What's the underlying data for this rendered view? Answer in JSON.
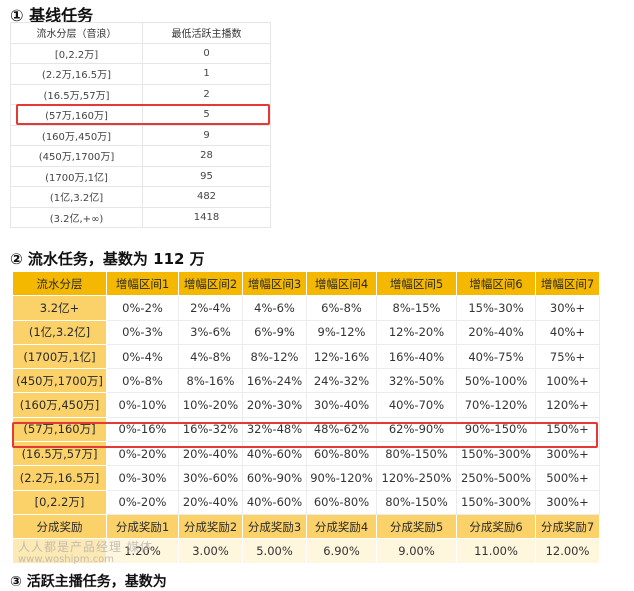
{
  "section1": {
    "heading": "①  基线任务",
    "columns": [
      "流水分层（音浪）",
      "最低活跃主播数"
    ],
    "rows": [
      [
        "[0,2.2万]",
        "0"
      ],
      [
        "(2.2万,16.5万]",
        "1"
      ],
      [
        "(16.5万,57万]",
        "2"
      ],
      [
        "(57万,160万]",
        "5"
      ],
      [
        "(160万,450万]",
        "9"
      ],
      [
        "(450万,1700万]",
        "28"
      ],
      [
        "(1700万,1亿]",
        "95"
      ],
      [
        "(1亿,3.2亿]",
        "482"
      ],
      [
        "(3.2亿,+∞)",
        "1418"
      ]
    ],
    "highlighted_row": 3
  },
  "section2": {
    "heading": "②  流水任务，基数为 112 万",
    "columns": [
      "流水分层",
      "增幅区间1",
      "增幅区间2",
      "增幅区间3",
      "增幅区间4",
      "增幅区间5",
      "增幅区间6",
      "增幅区间7"
    ],
    "rows": [
      [
        "3.2亿+",
        "0%-2%",
        "2%-4%",
        "4%-6%",
        "6%-8%",
        "8%-15%",
        "15%-30%",
        "30%+"
      ],
      [
        "(1亿,3.2亿]",
        "0%-3%",
        "3%-6%",
        "6%-9%",
        "9%-12%",
        "12%-20%",
        "20%-40%",
        "40%+"
      ],
      [
        "(1700万,1亿]",
        "0%-4%",
        "4%-8%",
        "8%-12%",
        "12%-16%",
        "16%-40%",
        "40%-75%",
        "75%+"
      ],
      [
        "(450万,1700万]",
        "0%-8%",
        "8%-16%",
        "16%-24%",
        "24%-32%",
        "32%-50%",
        "50%-100%",
        "100%+"
      ],
      [
        "(160万,450万]",
        "0%-10%",
        "10%-20%",
        "20%-30%",
        "30%-40%",
        "40%-70%",
        "70%-120%",
        "120%+"
      ],
      [
        "(57万,160万]",
        "0%-16%",
        "16%-32%",
        "32%-48%",
        "48%-62%",
        "62%-90%",
        "90%-150%",
        "150%+"
      ],
      [
        "(16.5万,57万]",
        "0%-20%",
        "20%-40%",
        "40%-60%",
        "60%-80%",
        "80%-150%",
        "150%-300%",
        "300%+"
      ],
      [
        "(2.2万,16.5万]",
        "0%-30%",
        "30%-60%",
        "60%-90%",
        "90%-120%",
        "120%-250%",
        "250%-500%",
        "500%+"
      ],
      [
        "[0,2.2万]",
        "0%-20%",
        "20%-40%",
        "40%-60%",
        "60%-80%",
        "80%-150%",
        "150%-300%",
        "300%+"
      ]
    ],
    "highlighted_row": 5,
    "reward_row_label": "分成奖励",
    "reward_labels": [
      "分成奖励1",
      "分成奖励2",
      "分成奖励3",
      "分成奖励4",
      "分成奖励5",
      "分成奖励6",
      "分成奖励7"
    ],
    "reward_values": [
      "1.20%",
      "3.00%",
      "5.00%",
      "6.90%",
      "9.00%",
      "11.00%",
      "12.00%"
    ]
  },
  "section3": {
    "heading_partial": "③ 活跃主播任务，基数为"
  },
  "watermark": {
    "name": "人人都是产品经理 媒体",
    "url": "www.woshipm.com"
  },
  "colors": {
    "header_gold": "#f5b800",
    "tier_gold": "#fbd26a",
    "highlight_red": "#e53935"
  }
}
